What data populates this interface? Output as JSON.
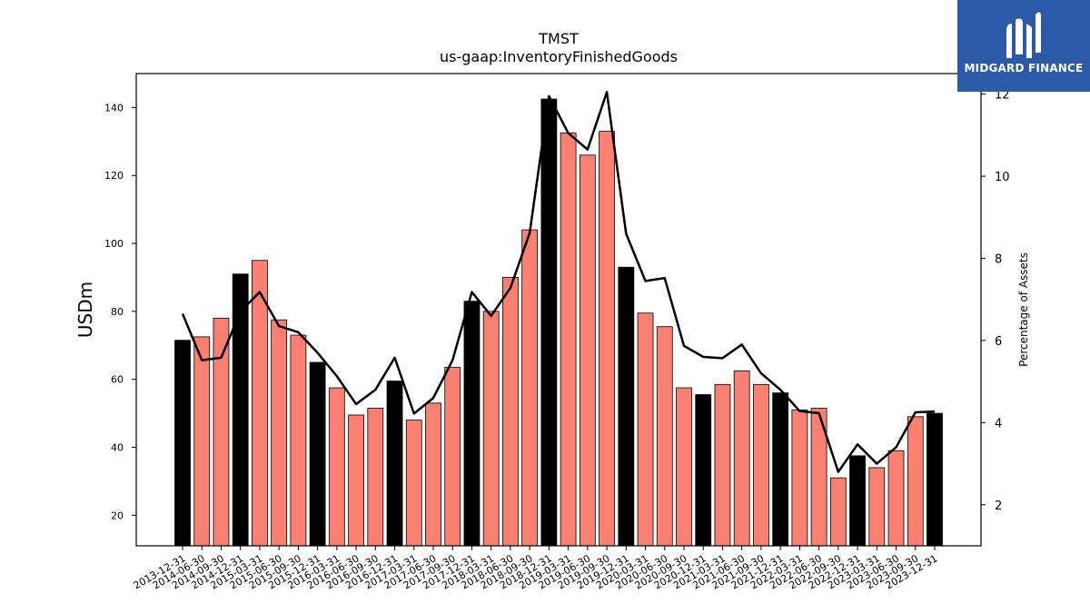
{
  "chart_data": {
    "type": "bar",
    "title": "TMST",
    "subtitle": "us-gaap:InventoryFinishedGoods",
    "ylabel": "USDm",
    "y2label": "Percentage of Assets",
    "ylim": [
      11,
      150
    ],
    "y2lim": [
      1.0,
      12.5
    ],
    "yticks": [
      20,
      40,
      60,
      80,
      100,
      120,
      140
    ],
    "y2ticks": [
      2,
      4,
      6,
      8,
      10,
      12
    ],
    "categories": [
      "2013-12-31",
      "2014-06-30",
      "2014-09-30",
      "2014-12-31",
      "2015-03-31",
      "2015-06-30",
      "2015-09-30",
      "2015-12-31",
      "2016-03-31",
      "2016-06-30",
      "2016-09-30",
      "2016-12-31",
      "2017-03-31",
      "2017-06-30",
      "2017-09-30",
      "2017-12-31",
      "2018-03-31",
      "2018-06-30",
      "2018-09-30",
      "2018-12-31",
      "2019-03-31",
      "2019-06-30",
      "2019-09-30",
      "2019-12-31",
      "2020-03-31",
      "2020-06-30",
      "2020-09-30",
      "2020-12-31",
      "2021-03-31",
      "2021-06-30",
      "2021-09-30",
      "2021-12-31",
      "2022-03-31",
      "2022-06-30",
      "2022-09-30",
      "2022-12-31",
      "2023-03-31",
      "2023-06-30",
      "2023-09-30",
      "2023-12-31"
    ],
    "series": [
      {
        "type": "bar",
        "values": [
          71.5,
          72.5,
          78,
          91,
          95,
          77.5,
          73,
          65,
          57.5,
          49.5,
          51.5,
          59.5,
          48,
          53,
          63.5,
          83,
          80,
          90,
          104,
          142.5,
          132.5,
          126,
          133,
          93,
          79.5,
          75.5,
          57.5,
          55.5,
          58.5,
          62.5,
          58.5,
          56,
          51,
          51.5,
          31,
          37.5,
          34,
          39,
          49,
          50
        ],
        "annual": [
          true,
          false,
          false,
          true,
          false,
          false,
          false,
          true,
          false,
          false,
          false,
          true,
          false,
          false,
          false,
          true,
          false,
          false,
          false,
          true,
          false,
          false,
          false,
          true,
          false,
          false,
          false,
          true,
          false,
          false,
          false,
          true,
          false,
          false,
          false,
          true,
          false,
          false,
          false,
          true
        ]
      },
      {
        "type": "line",
        "axis": "right",
        "values": [
          6.65,
          5.52,
          5.58,
          6.7,
          7.18,
          6.35,
          6.2,
          5.7,
          5.13,
          4.45,
          4.8,
          5.58,
          4.22,
          4.6,
          5.52,
          7.18,
          6.6,
          7.28,
          8.62,
          11.95,
          11.05,
          10.65,
          12.05,
          8.6,
          7.45,
          7.52,
          5.87,
          5.6,
          5.57,
          5.9,
          5.2,
          4.8,
          4.28,
          4.23,
          2.8,
          3.47,
          3.0,
          3.4,
          4.25,
          4.27
        ]
      }
    ],
    "colors": {
      "annual_bar": "#000000",
      "quarter_bar": "#fa8072",
      "line": "#000000"
    }
  },
  "logo": {
    "text": "MIDGARD FINANCE"
  }
}
